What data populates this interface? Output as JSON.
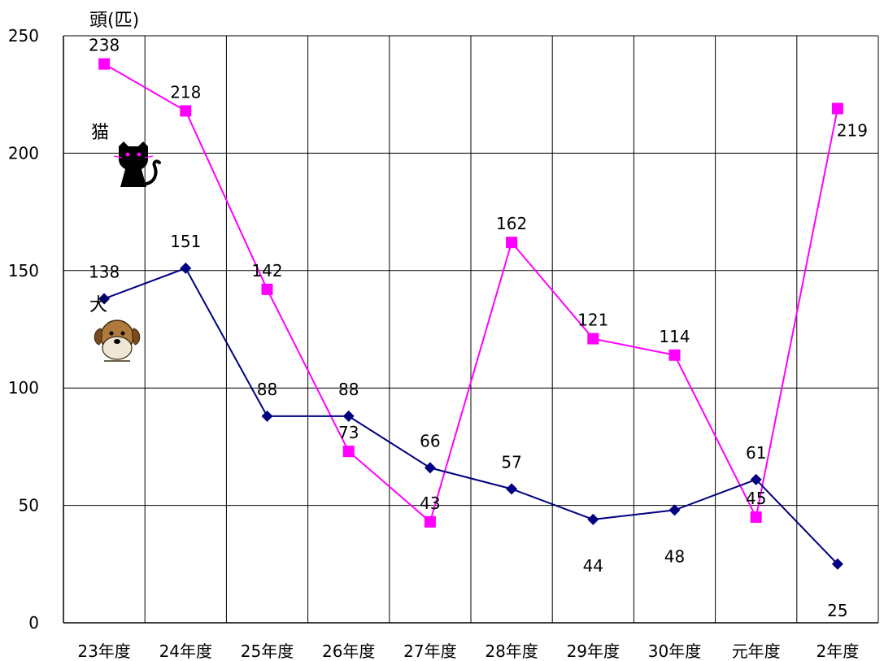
{
  "chart_data": {
    "type": "line",
    "title": "",
    "xlabel": "",
    "ylabel": "頭(匹)",
    "ylim": [
      0,
      250
    ],
    "yticks": [
      0,
      50,
      100,
      150,
      200,
      250
    ],
    "grid": true,
    "categories": [
      "23年度",
      "24年度",
      "25年度",
      "26年度",
      "27年度",
      "28年度",
      "29年度",
      "30年度",
      "元年度",
      "2年度"
    ],
    "series": [
      {
        "name": "猫",
        "color": "#ff00ff",
        "marker": "square",
        "icon": "black-cat-icon",
        "values": [
          238,
          218,
          142,
          73,
          43,
          162,
          121,
          114,
          45,
          219
        ]
      },
      {
        "name": "犬",
        "color": "#000080",
        "marker": "diamond",
        "icon": "dog-face-icon",
        "values": [
          138,
          151,
          88,
          88,
          66,
          57,
          44,
          48,
          61,
          25
        ]
      }
    ]
  }
}
